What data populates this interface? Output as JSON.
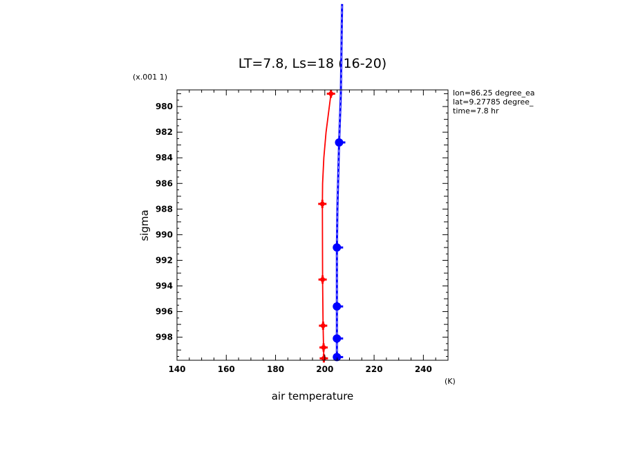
{
  "chart_data": {
    "type": "line",
    "title": "LT=7.8, Ls=18 (16-20)",
    "xlabel": "air temperature",
    "xunit": "(K)",
    "ylabel": "sigma",
    "yscale_note": "(x.001 1)",
    "xlim": [
      140,
      250
    ],
    "ylim": [
      999.8,
      978.7
    ],
    "x_ticks": [
      140,
      160,
      180,
      200,
      220,
      240
    ],
    "x_tick_labels": [
      "140",
      "160",
      "180",
      "200",
      "220",
      "240"
    ],
    "y_ticks": [
      980,
      982,
      984,
      986,
      988,
      990,
      992,
      994,
      996,
      998
    ],
    "y_tick_labels": [
      "980",
      "982",
      "984",
      "986",
      "988",
      "990",
      "992",
      "994",
      "996",
      "998"
    ],
    "info_lines": [
      "lon=86.25 degree_ea",
      "lat=9.27785 degree_",
      "time=7.8 hr"
    ],
    "series": [
      {
        "color": "#ff0000",
        "marker": "plus",
        "x": [
          199.6,
          199.5,
          199.3,
          199.1,
          199.0,
          199.1,
          199.6,
          200.5,
          202.5
        ],
        "y": [
          999.65,
          998.8,
          997.1,
          993.5,
          987.6,
          986.0,
          984.0,
          982.0,
          979.0
        ],
        "marker_x": [
          199.6,
          199.5,
          199.3,
          199.1,
          199.0,
          202.5
        ],
        "marker_y": [
          999.65,
          998.8,
          997.1,
          993.5,
          987.6,
          979.0
        ]
      },
      {
        "color": "#0000ff",
        "marker": "circle",
        "x": [
          204.9,
          204.9,
          204.9,
          204.9,
          205.1,
          205.8,
          206.5,
          207.0
        ],
        "y": [
          999.55,
          998.1,
          995.6,
          991.0,
          988.0,
          982.8,
          979.0,
          972.0
        ],
        "marker_x": [
          204.9,
          204.9,
          204.9,
          204.9,
          205.8
        ],
        "marker_y": [
          999.55,
          998.1,
          995.6,
          991.0,
          982.8
        ]
      }
    ]
  }
}
